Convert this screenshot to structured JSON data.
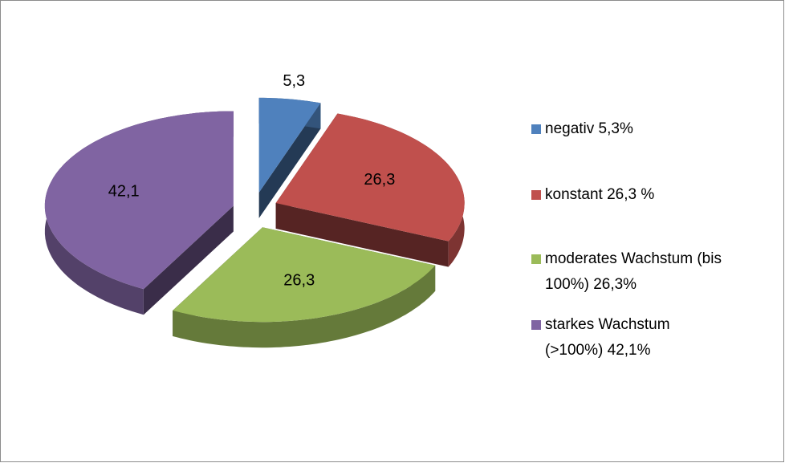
{
  "chart_data": {
    "type": "pie3d",
    "categories": [
      "negativ 5,3%",
      "konstant 26,3 %",
      "moderates Wachstum (bis 100%) 26,3%",
      "starkes Wachstum (>100%) 42,1%"
    ],
    "values": [
      5.3,
      26.3,
      26.3,
      42.1
    ],
    "value_labels": [
      "5,3",
      "26,3",
      "26,3",
      "42,1"
    ],
    "colors": [
      "#4f81bd",
      "#c0504d",
      "#9bbb59",
      "#8064a2"
    ],
    "legend": "right"
  }
}
